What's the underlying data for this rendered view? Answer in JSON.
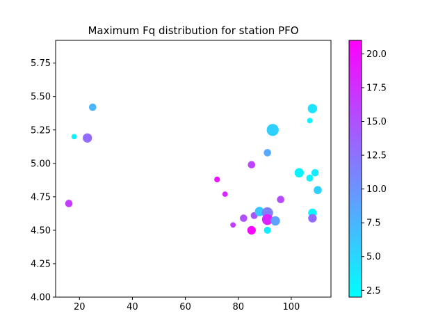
{
  "chart_data": {
    "type": "scatter",
    "title": "Maximum Fq distribution for station PFO",
    "xlabel": "",
    "ylabel": "",
    "xlim": [
      11,
      115
    ],
    "ylim": [
      4.0,
      5.92
    ],
    "xticks": [
      20,
      40,
      60,
      80,
      100
    ],
    "xtick_labels": [
      "20",
      "40",
      "60",
      "80",
      "100"
    ],
    "yticks": [
      4.0,
      4.25,
      4.5,
      4.75,
      5.0,
      5.25,
      5.5,
      5.75
    ],
    "ytick_labels": [
      "4.00",
      "4.25",
      "4.50",
      "4.75",
      "5.00",
      "5.25",
      "5.50",
      "5.75"
    ],
    "grid": false,
    "colormap": "cool",
    "colorbar": {
      "min": 2.0,
      "max": 21.0,
      "ticks": [
        2.5,
        5.0,
        7.5,
        10.0,
        12.5,
        15.0,
        17.5,
        20.0
      ],
      "tick_labels": [
        "2.5",
        "5.0",
        "7.5",
        "10.0",
        "12.5",
        "15.0",
        "17.5",
        "20.0"
      ]
    },
    "points": [
      {
        "x": 16,
        "y": 4.7,
        "c": 16.5,
        "s": 1.0
      },
      {
        "x": 18,
        "y": 5.2,
        "c": 3.0,
        "s": 0.5
      },
      {
        "x": 23,
        "y": 5.19,
        "c": 13.0,
        "s": 1.5
      },
      {
        "x": 25,
        "y": 5.42,
        "c": 7.5,
        "s": 1.0
      },
      {
        "x": 72,
        "y": 4.88,
        "c": 19.5,
        "s": 0.6
      },
      {
        "x": 75,
        "y": 4.77,
        "c": 18.0,
        "s": 0.5
      },
      {
        "x": 78,
        "y": 4.54,
        "c": 16.5,
        "s": 0.5
      },
      {
        "x": 82,
        "y": 4.59,
        "c": 15.0,
        "s": 1.0
      },
      {
        "x": 85,
        "y": 4.99,
        "c": 16.0,
        "s": 1.0
      },
      {
        "x": 85,
        "y": 4.5,
        "c": 20.5,
        "s": 1.3
      },
      {
        "x": 86,
        "y": 4.61,
        "c": 14.5,
        "s": 0.9
      },
      {
        "x": 88,
        "y": 4.64,
        "c": 6.0,
        "s": 1.5
      },
      {
        "x": 91,
        "y": 5.08,
        "c": 8.5,
        "s": 1.0
      },
      {
        "x": 91,
        "y": 4.63,
        "c": 11.5,
        "s": 2.0
      },
      {
        "x": 91,
        "y": 4.58,
        "c": 18.5,
        "s": 1.9
      },
      {
        "x": 91,
        "y": 4.5,
        "c": 3.5,
        "s": 0.9
      },
      {
        "x": 93,
        "y": 5.25,
        "c": 5.5,
        "s": 2.2
      },
      {
        "x": 94,
        "y": 4.57,
        "c": 9.0,
        "s": 1.5
      },
      {
        "x": 96,
        "y": 4.73,
        "c": 15.5,
        "s": 1.0
      },
      {
        "x": 103,
        "y": 4.93,
        "c": 3.0,
        "s": 1.5
      },
      {
        "x": 107,
        "y": 5.32,
        "c": 3.0,
        "s": 0.5
      },
      {
        "x": 107,
        "y": 4.89,
        "c": 3.0,
        "s": 0.9
      },
      {
        "x": 108,
        "y": 5.41,
        "c": 4.0,
        "s": 1.5
      },
      {
        "x": 108,
        "y": 4.63,
        "c": 2.5,
        "s": 1.3
      },
      {
        "x": 108,
        "y": 4.59,
        "c": 13.0,
        "s": 1.3
      },
      {
        "x": 109,
        "y": 4.93,
        "c": 3.5,
        "s": 1.0
      },
      {
        "x": 110,
        "y": 4.8,
        "c": 5.5,
        "s": 1.2
      }
    ]
  }
}
